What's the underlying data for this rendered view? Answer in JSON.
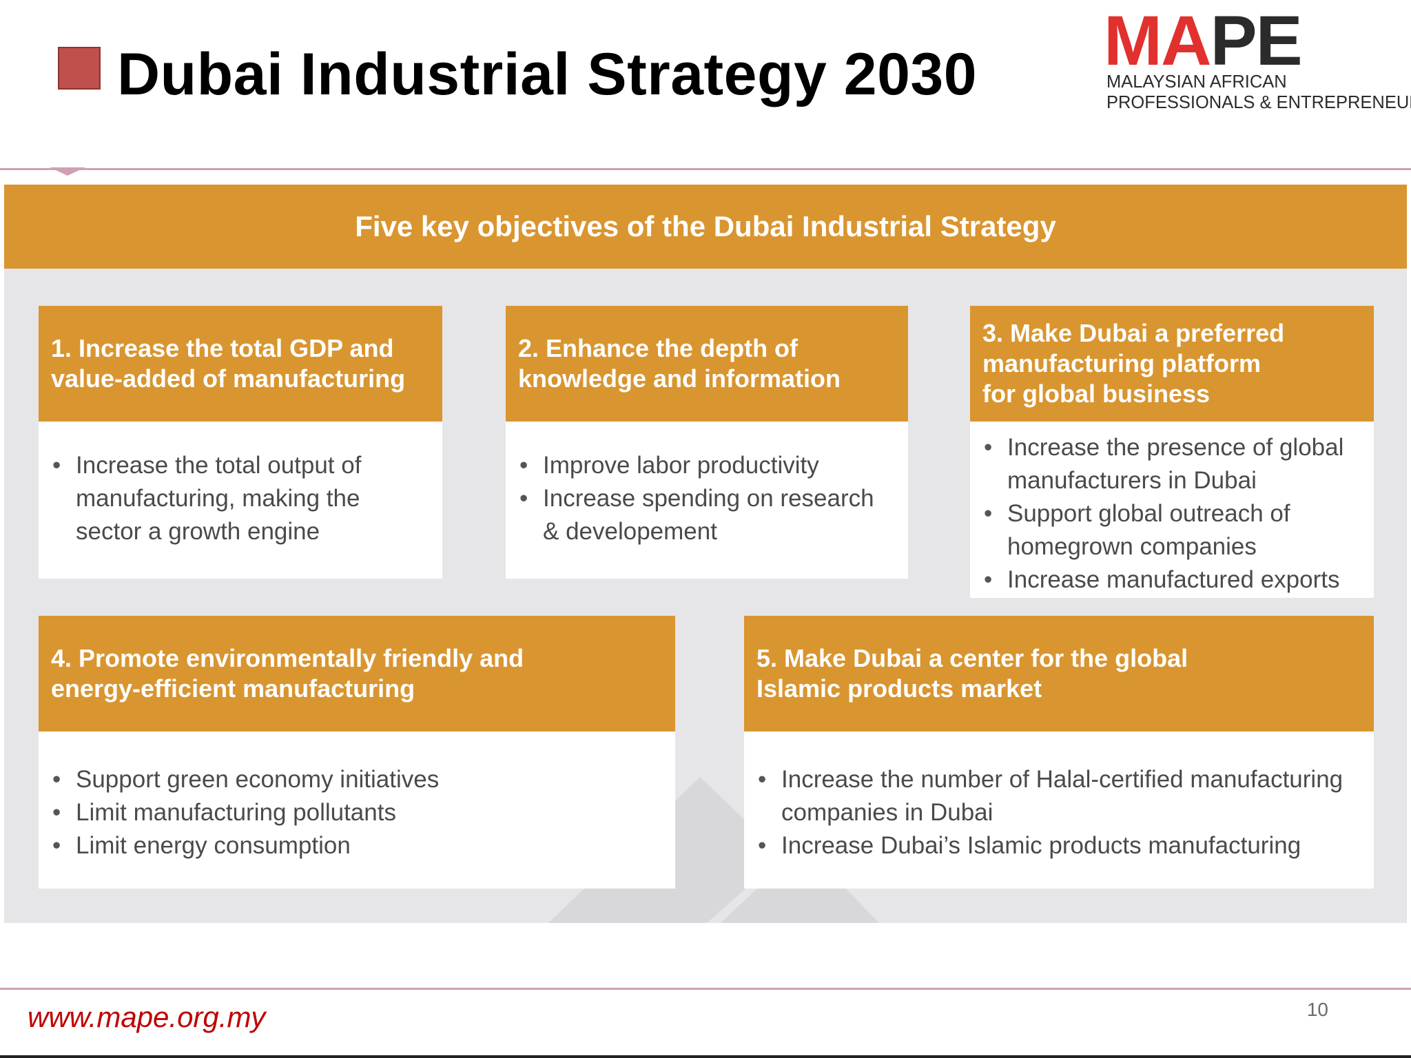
{
  "header": {
    "title": "Dubai Industrial Strategy 2030"
  },
  "logo": {
    "wordmark_red": "MA",
    "wordmark_dark": "PE",
    "line1": "MALAYSIAN AFRICAN",
    "line2": "PROFESSIONALS & ENTREPRENEURS"
  },
  "panel": {
    "banner": "Five key objectives of the Dubai Industrial Strategy",
    "objectives": [
      {
        "heading_lines": [
          "1. Increase the total GDP and",
          "value-added of manufacturing"
        ],
        "bullets": [
          "Increase the total output of manufacturing, making the sector a growth engine"
        ]
      },
      {
        "heading_lines": [
          "2. Enhance the depth of",
          "knowledge and information"
        ],
        "bullets": [
          "Improve labor productivity",
          "Increase spending on research & developement"
        ]
      },
      {
        "heading_lines": [
          "3. Make Dubai a preferred",
          "manufacturing platform",
          "for global business"
        ],
        "bullets": [
          "Increase the presence of global manufacturers in Dubai",
          "Support global outreach of homegrown companies",
          "Increase manufactured exports"
        ]
      },
      {
        "heading_lines": [
          "4. Promote environmentally friendly and",
          "energy-efficient manufacturing"
        ],
        "bullets": [
          "Support green economy initiatives",
          "Limit manufacturing pollutants",
          "Limit energy consumption"
        ]
      },
      {
        "heading_lines": [
          "5. Make Dubai a center for the global",
          "Islamic products market"
        ],
        "bullets": [
          "Increase the number of Halal-certified manufacturing companies in Dubai",
          "Increase Dubai’s Islamic products manufacturing"
        ]
      }
    ]
  },
  "footer": {
    "url": "www.mape.org.my",
    "page_number": "10"
  },
  "colors": {
    "accent_orange": "#d9952f",
    "panel_grey": "#e6e6e8",
    "title_bullet": "#c0504d",
    "brand_red": "#e0312f",
    "footer_url": "#c00000",
    "rule_pink": "#cfa0b4"
  }
}
